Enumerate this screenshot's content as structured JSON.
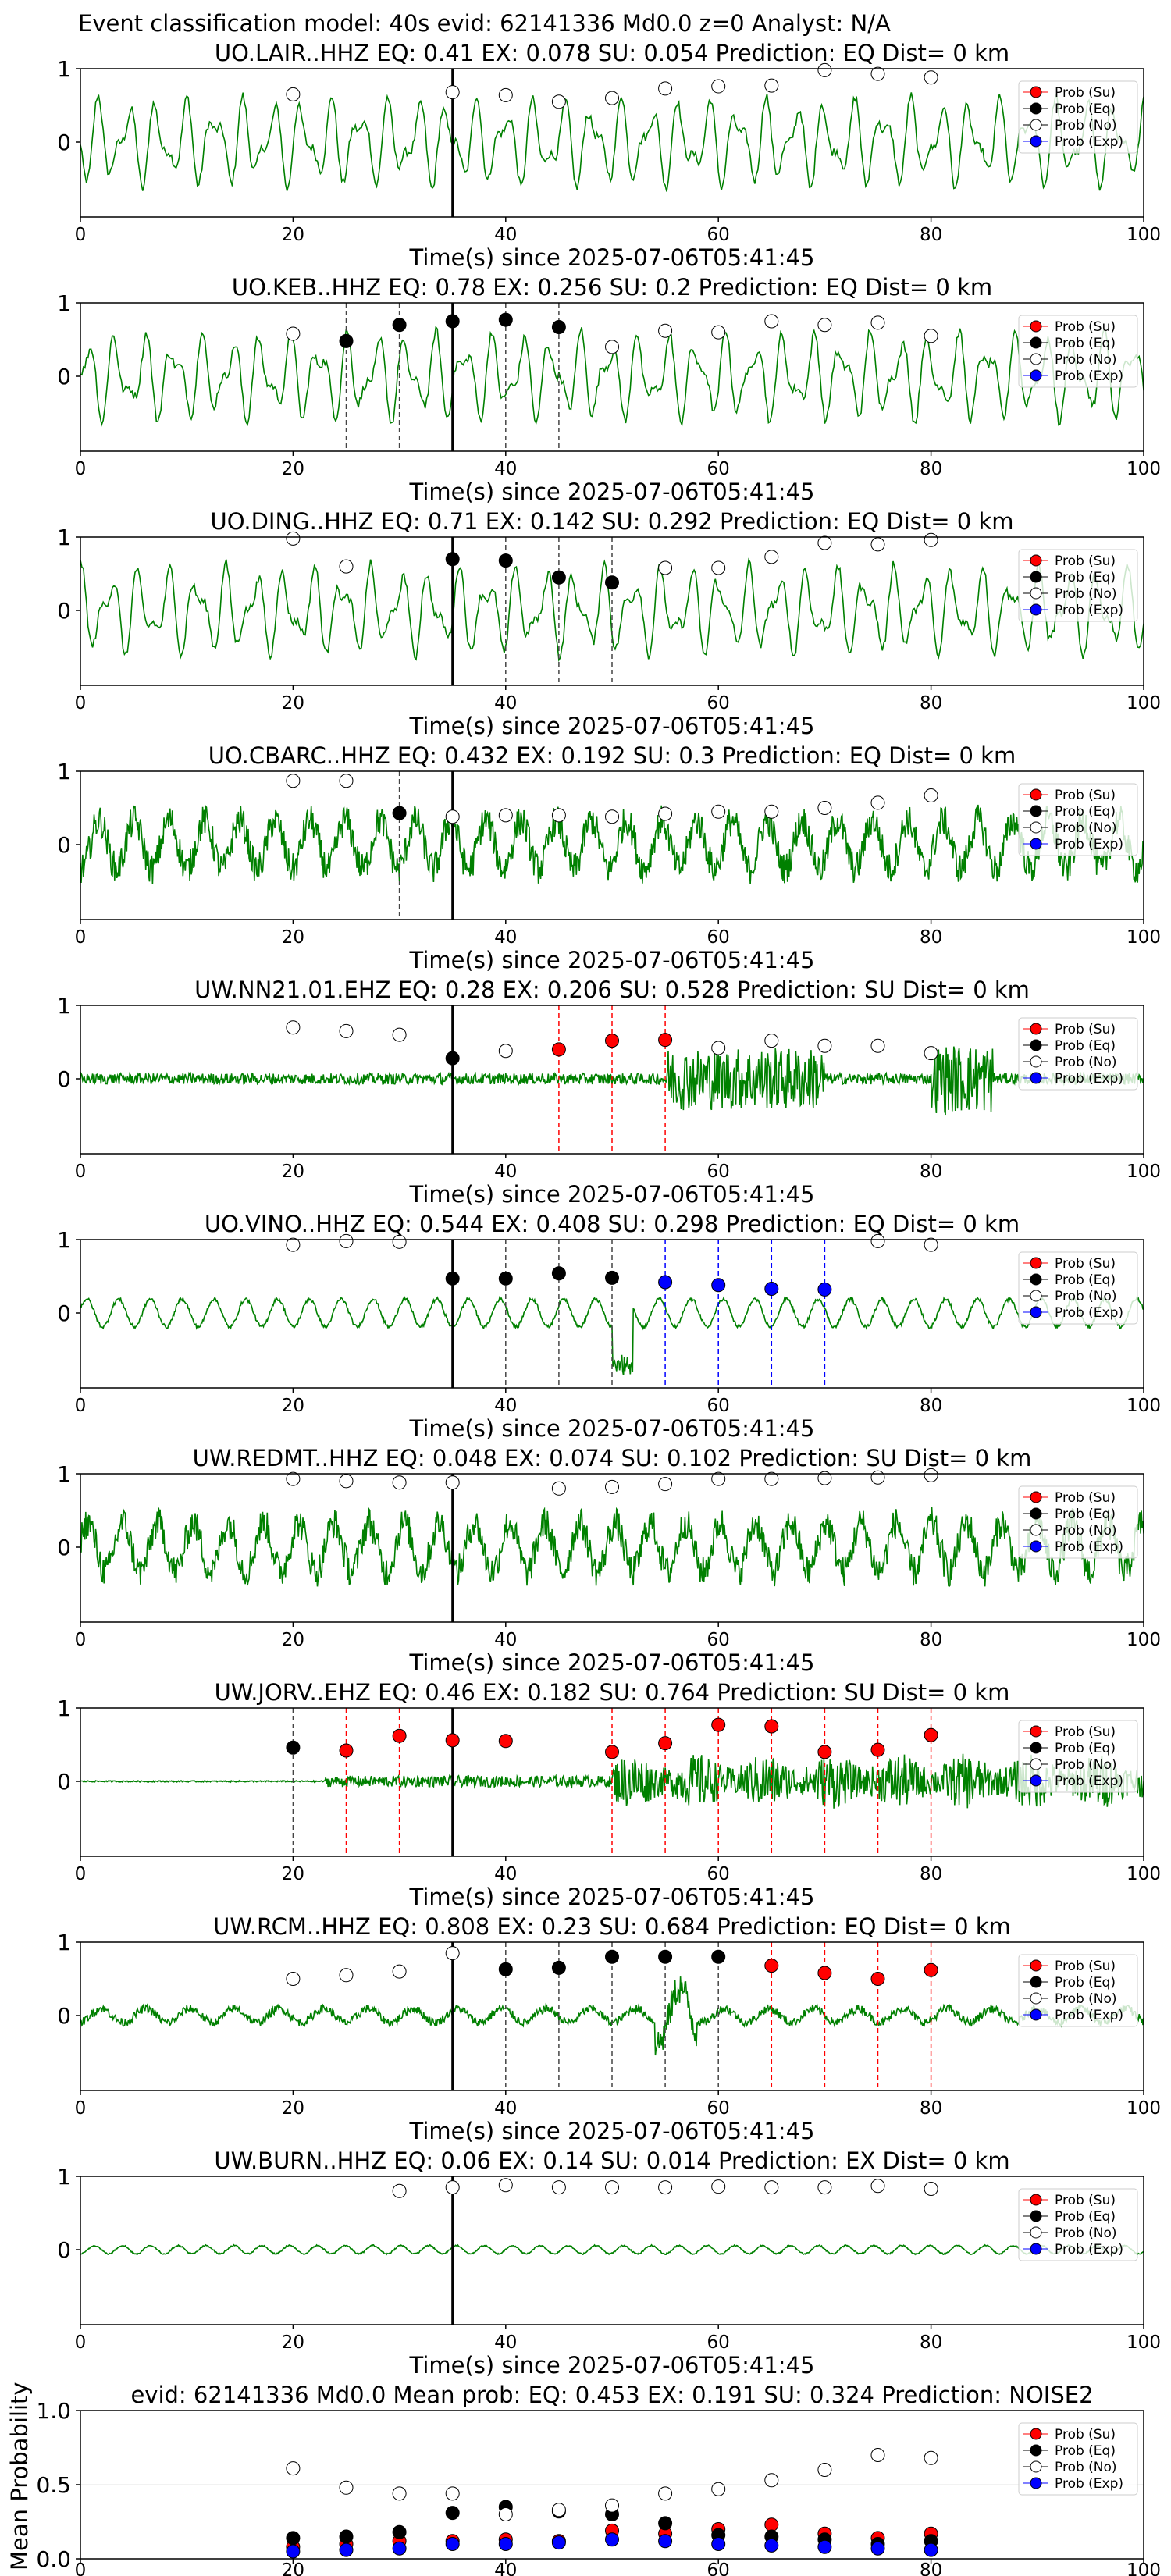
{
  "suptitle": "Event classification model: 40s evid: 62141336 Md0.0 z=0 Analyst: N/A",
  "legend": [
    "Prob (Su)",
    "Prob (Eq)",
    "Prob (No)",
    "Prob (Exp)"
  ],
  "colors": {
    "su": "#ff0000",
    "eq": "#000000",
    "no": "#ffffff",
    "exp": "#0000ff",
    "trace": "#008000",
    "su_line": "#ff0000",
    "eq_line": "#444444",
    "exp_line": "#0000ff"
  },
  "chart_data": {
    "type": "line",
    "xlim": [
      0,
      100
    ],
    "x_ticks": [
      0,
      20,
      40,
      60,
      80,
      100
    ],
    "xlabel": "Time(s) since 2025-07-06T05:41:45",
    "y_ticks": [
      0,
      1
    ],
    "origin_line_x": 35,
    "panels": [
      {
        "title": "UO.LAIR..HHZ   EQ: 0.41   EX: 0.078   SU: 0.054    Prediction: EQ    Dist= 0 km",
        "noise": "smooth",
        "points": [
          [
            20,
            0.65,
            "no"
          ],
          [
            35,
            0.68,
            "no"
          ],
          [
            40,
            0.64,
            "no"
          ],
          [
            45,
            0.55,
            "no"
          ],
          [
            50,
            0.6,
            "no"
          ],
          [
            55,
            0.73,
            "no"
          ],
          [
            60,
            0.76,
            "no"
          ],
          [
            65,
            0.77,
            "no"
          ],
          [
            70,
            0.98,
            "no"
          ],
          [
            75,
            0.93,
            "no"
          ],
          [
            80,
            0.88,
            "no"
          ]
        ],
        "vlines": []
      },
      {
        "title": "UO.KEB..HHZ   EQ: 0.78   EX: 0.256   SU: 0.2    Prediction: EQ    Dist= 0 km",
        "noise": "smooth",
        "points": [
          [
            20,
            0.58,
            "no"
          ],
          [
            25,
            0.48,
            "eq"
          ],
          [
            30,
            0.7,
            "eq"
          ],
          [
            35,
            0.75,
            "eq"
          ],
          [
            40,
            0.77,
            "eq"
          ],
          [
            45,
            0.67,
            "eq"
          ],
          [
            50,
            0.4,
            "no"
          ],
          [
            55,
            0.62,
            "no"
          ],
          [
            60,
            0.6,
            "no"
          ],
          [
            65,
            0.75,
            "no"
          ],
          [
            70,
            0.7,
            "no"
          ],
          [
            75,
            0.73,
            "no"
          ],
          [
            80,
            0.55,
            "no"
          ]
        ],
        "vlines": [
          [
            25,
            "eq"
          ],
          [
            30,
            "eq"
          ],
          [
            40,
            "eq"
          ],
          [
            45,
            "eq"
          ]
        ]
      },
      {
        "title": "UO.DING..HHZ   EQ: 0.71   EX: 0.142   SU: 0.292    Prediction: EQ    Dist= 0 km",
        "noise": "smooth",
        "points": [
          [
            20,
            0.98,
            "no"
          ],
          [
            25,
            0.6,
            "no"
          ],
          [
            35,
            0.7,
            "eq"
          ],
          [
            40,
            0.68,
            "eq"
          ],
          [
            45,
            0.45,
            "eq"
          ],
          [
            50,
            0.38,
            "eq"
          ],
          [
            55,
            0.58,
            "no"
          ],
          [
            60,
            0.58,
            "no"
          ],
          [
            65,
            0.73,
            "no"
          ],
          [
            70,
            0.92,
            "no"
          ],
          [
            75,
            0.9,
            "no"
          ],
          [
            80,
            0.96,
            "no"
          ]
        ],
        "vlines": [
          [
            40,
            "eq"
          ],
          [
            45,
            "eq"
          ],
          [
            50,
            "eq"
          ]
        ]
      },
      {
        "title": "UO.CBARC..HHZ   EQ: 0.432   EX: 0.192   SU: 0.3    Prediction: EQ    Dist= 0 km",
        "noise": "noisy",
        "points": [
          [
            20,
            0.87,
            "no"
          ],
          [
            25,
            0.87,
            "no"
          ],
          [
            30,
            0.43,
            "eq"
          ],
          [
            35,
            0.38,
            "no"
          ],
          [
            40,
            0.4,
            "no"
          ],
          [
            45,
            0.4,
            "no"
          ],
          [
            50,
            0.38,
            "no"
          ],
          [
            55,
            0.42,
            "no"
          ],
          [
            60,
            0.45,
            "no"
          ],
          [
            65,
            0.45,
            "no"
          ],
          [
            70,
            0.5,
            "no"
          ],
          [
            75,
            0.57,
            "no"
          ],
          [
            80,
            0.67,
            "no"
          ]
        ],
        "vlines": [
          [
            30,
            "eq"
          ]
        ]
      },
      {
        "title": "UW.NN21.01.EHZ   EQ: 0.28   EX: 0.206   SU: 0.528    Prediction: SU    Dist= 0 km",
        "noise": "burst",
        "points": [
          [
            20,
            0.7,
            "no"
          ],
          [
            25,
            0.65,
            "no"
          ],
          [
            30,
            0.6,
            "no"
          ],
          [
            35,
            0.28,
            "eq"
          ],
          [
            40,
            0.38,
            "no"
          ],
          [
            45,
            0.4,
            "su"
          ],
          [
            50,
            0.52,
            "su"
          ],
          [
            55,
            0.53,
            "su"
          ],
          [
            60,
            0.42,
            "no"
          ],
          [
            65,
            0.52,
            "no"
          ],
          [
            70,
            0.45,
            "no"
          ],
          [
            75,
            0.45,
            "no"
          ],
          [
            80,
            0.35,
            "no"
          ]
        ],
        "vlines": [
          [
            45,
            "su"
          ],
          [
            50,
            "su"
          ],
          [
            55,
            "su"
          ]
        ]
      },
      {
        "title": "UO.VINO..HHZ   EQ: 0.544   EX: 0.408   SU: 0.298    Prediction: EQ    Dist= 0 km",
        "noise": "low",
        "points": [
          [
            20,
            0.93,
            "no"
          ],
          [
            25,
            0.98,
            "no"
          ],
          [
            30,
            0.97,
            "no"
          ],
          [
            35,
            0.47,
            "eq"
          ],
          [
            40,
            0.47,
            "eq"
          ],
          [
            45,
            0.54,
            "eq"
          ],
          [
            50,
            0.48,
            "eq"
          ],
          [
            55,
            0.42,
            "exp"
          ],
          [
            60,
            0.38,
            "exp"
          ],
          [
            65,
            0.33,
            "exp"
          ],
          [
            70,
            0.32,
            "exp"
          ],
          [
            75,
            0.98,
            "no"
          ],
          [
            80,
            0.93,
            "no"
          ]
        ],
        "vlines": [
          [
            40,
            "eq"
          ],
          [
            45,
            "eq"
          ],
          [
            50,
            "eq"
          ],
          [
            55,
            "exp"
          ],
          [
            60,
            "exp"
          ],
          [
            65,
            "exp"
          ],
          [
            70,
            "exp"
          ]
        ]
      },
      {
        "title": "UW.REDMT..HHZ   EQ: 0.048   EX: 0.074   SU: 0.102    Prediction: SU    Dist= 0 km",
        "noise": "noisy",
        "points": [
          [
            20,
            0.93,
            "no"
          ],
          [
            25,
            0.9,
            "no"
          ],
          [
            30,
            0.88,
            "no"
          ],
          [
            35,
            0.88,
            "no"
          ],
          [
            45,
            0.8,
            "no"
          ],
          [
            50,
            0.82,
            "no"
          ],
          [
            55,
            0.86,
            "no"
          ],
          [
            60,
            0.93,
            "no"
          ],
          [
            65,
            0.93,
            "no"
          ],
          [
            70,
            0.94,
            "no"
          ],
          [
            75,
            0.95,
            "no"
          ],
          [
            80,
            0.98,
            "no"
          ]
        ],
        "vlines": []
      },
      {
        "title": "UW.JORV..EHZ   EQ: 0.46   EX: 0.182   SU: 0.764    Prediction: SU    Dist= 0 km",
        "noise": "quake",
        "points": [
          [
            20,
            0.46,
            "eq"
          ],
          [
            25,
            0.42,
            "su"
          ],
          [
            30,
            0.62,
            "su"
          ],
          [
            35,
            0.56,
            "su"
          ],
          [
            40,
            0.55,
            "su"
          ],
          [
            50,
            0.4,
            "su"
          ],
          [
            55,
            0.52,
            "su"
          ],
          [
            60,
            0.77,
            "su"
          ],
          [
            65,
            0.75,
            "su"
          ],
          [
            70,
            0.4,
            "su"
          ],
          [
            75,
            0.43,
            "su"
          ],
          [
            80,
            0.63,
            "su"
          ]
        ],
        "vlines": [
          [
            20,
            "eq"
          ],
          [
            25,
            "su"
          ],
          [
            30,
            "su"
          ],
          [
            50,
            "su"
          ],
          [
            55,
            "su"
          ],
          [
            60,
            "su"
          ],
          [
            65,
            "su"
          ],
          [
            70,
            "su"
          ],
          [
            75,
            "su"
          ],
          [
            80,
            "su"
          ]
        ]
      },
      {
        "title": "UW.RCM..HHZ   EQ: 0.808   EX: 0.23   SU: 0.684    Prediction: EQ    Dist= 0 km",
        "noise": "midnoise",
        "points": [
          [
            20,
            0.5,
            "no"
          ],
          [
            25,
            0.55,
            "no"
          ],
          [
            30,
            0.6,
            "no"
          ],
          [
            35,
            0.85,
            "no"
          ],
          [
            40,
            0.63,
            "eq"
          ],
          [
            45,
            0.65,
            "eq"
          ],
          [
            50,
            0.8,
            "eq"
          ],
          [
            55,
            0.8,
            "eq"
          ],
          [
            60,
            0.8,
            "eq"
          ],
          [
            65,
            0.68,
            "su"
          ],
          [
            70,
            0.58,
            "su"
          ],
          [
            75,
            0.5,
            "su"
          ],
          [
            80,
            0.62,
            "su"
          ]
        ],
        "vlines": [
          [
            40,
            "eq"
          ],
          [
            45,
            "eq"
          ],
          [
            50,
            "eq"
          ],
          [
            55,
            "eq"
          ],
          [
            60,
            "eq"
          ],
          [
            65,
            "su"
          ],
          [
            70,
            "su"
          ],
          [
            75,
            "su"
          ],
          [
            80,
            "su"
          ]
        ]
      },
      {
        "title": "UW.BURN..HHZ   EQ: 0.06   EX: 0.14   SU: 0.014    Prediction: EX    Dist= 0 km",
        "noise": "flat",
        "points": [
          [
            30,
            0.8,
            "no"
          ],
          [
            35,
            0.85,
            "no"
          ],
          [
            40,
            0.88,
            "no"
          ],
          [
            45,
            0.85,
            "no"
          ],
          [
            50,
            0.85,
            "no"
          ],
          [
            55,
            0.85,
            "no"
          ],
          [
            60,
            0.86,
            "no"
          ],
          [
            65,
            0.85,
            "no"
          ],
          [
            70,
            0.85,
            "no"
          ],
          [
            75,
            0.87,
            "no"
          ],
          [
            80,
            0.83,
            "no"
          ]
        ],
        "vlines": []
      }
    ],
    "summary": {
      "title": "evid: 62141336  Md0.0   Mean prob:   EQ: 0.453  EX: 0.191  SU: 0.324   Prediction: NOISE2",
      "ylabel": "Mean Probability",
      "ylim": [
        0,
        1
      ],
      "y_ticks": [
        0.0,
        0.5,
        1.0
      ],
      "y_tick_labels": [
        "0.0",
        "0.5",
        "1.0"
      ],
      "x": [
        20,
        25,
        30,
        35,
        40,
        45,
        50,
        55,
        60,
        65,
        70,
        75,
        80
      ],
      "series": [
        {
          "name": "Prob (Su)",
          "key": "su",
          "values": [
            0.08,
            0.1,
            0.12,
            0.12,
            0.13,
            0.12,
            0.19,
            0.17,
            0.2,
            0.23,
            0.17,
            0.14,
            0.17
          ]
        },
        {
          "name": "Prob (Eq)",
          "key": "eq",
          "values": [
            0.14,
            0.15,
            0.18,
            0.31,
            0.35,
            0.32,
            0.3,
            0.24,
            0.16,
            0.15,
            0.13,
            0.1,
            0.12
          ]
        },
        {
          "name": "Prob (No)",
          "key": "no",
          "values": [
            0.61,
            0.48,
            0.44,
            0.44,
            0.3,
            0.33,
            0.36,
            0.44,
            0.47,
            0.53,
            0.6,
            0.7,
            0.68
          ]
        },
        {
          "name": "Prob (Exp)",
          "key": "exp",
          "values": [
            0.05,
            0.06,
            0.07,
            0.1,
            0.1,
            0.11,
            0.13,
            0.12,
            0.1,
            0.09,
            0.08,
            0.07,
            0.06
          ]
        }
      ]
    }
  }
}
